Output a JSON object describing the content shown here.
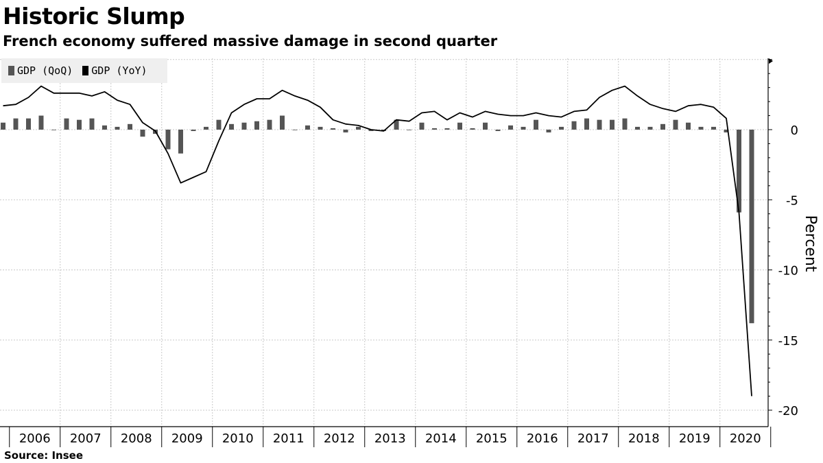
{
  "title": "Historic Slump",
  "subtitle": "French economy suffered massive damage in second quarter",
  "source": "Source: Insee",
  "colors": {
    "bar": "#555555",
    "line": "#000000",
    "grid": "#c8c8c8",
    "legend_bg": "#efefef"
  },
  "chart_data": {
    "type": "bar",
    "title": "Historic Slump",
    "subtitle": "French economy suffered massive damage in second quarter",
    "ylabel": "Percent",
    "xlabel": "",
    "ylim": [
      -21,
      5
    ],
    "yticks": [
      0,
      -5,
      -10,
      -15,
      -20
    ],
    "y_axis_side": "right",
    "grid": true,
    "legend_placement": "top-left",
    "year_labels": [
      "2006",
      "2007",
      "2008",
      "2009",
      "2010",
      "2011",
      "2012",
      "2013",
      "2014",
      "2015",
      "2016",
      "2017",
      "2018",
      "2019",
      "2020"
    ],
    "x": [
      "2005 Q3",
      "2005 Q4",
      "2006 Q1",
      "2006 Q2",
      "2006 Q3",
      "2006 Q4",
      "2007 Q1",
      "2007 Q2",
      "2007 Q3",
      "2007 Q4",
      "2008 Q1",
      "2008 Q2",
      "2008 Q3",
      "2008 Q4",
      "2009 Q1",
      "2009 Q2",
      "2009 Q3",
      "2009 Q4",
      "2010 Q1",
      "2010 Q2",
      "2010 Q3",
      "2010 Q4",
      "2011 Q1",
      "2011 Q2",
      "2011 Q3",
      "2011 Q4",
      "2012 Q1",
      "2012 Q2",
      "2012 Q3",
      "2012 Q4",
      "2013 Q1",
      "2013 Q2",
      "2013 Q3",
      "2013 Q4",
      "2014 Q1",
      "2014 Q2",
      "2014 Q3",
      "2014 Q4",
      "2015 Q1",
      "2015 Q2",
      "2015 Q3",
      "2015 Q4",
      "2016 Q1",
      "2016 Q2",
      "2016 Q3",
      "2016 Q4",
      "2017 Q1",
      "2017 Q2",
      "2017 Q3",
      "2017 Q4",
      "2018 Q1",
      "2018 Q2",
      "2018 Q3",
      "2018 Q4",
      "2019 Q1",
      "2019 Q2",
      "2019 Q3",
      "2019 Q4",
      "2020 Q1",
      "2020 Q2"
    ],
    "series": [
      {
        "name": "GDP (QoQ)",
        "type": "bar",
        "values": [
          0.5,
          0.8,
          0.8,
          1.0,
          0.0,
          0.8,
          0.7,
          0.8,
          0.3,
          0.2,
          0.4,
          -0.5,
          -0.3,
          -1.4,
          -1.7,
          -0.1,
          0.2,
          0.7,
          0.4,
          0.5,
          0.6,
          0.7,
          1.0,
          0.0,
          0.3,
          0.2,
          0.1,
          -0.2,
          0.2,
          -0.1,
          -0.1,
          0.7,
          0.0,
          0.5,
          0.1,
          0.1,
          0.5,
          0.1,
          0.5,
          -0.1,
          0.3,
          0.2,
          0.7,
          -0.2,
          0.2,
          0.6,
          0.8,
          0.7,
          0.7,
          0.8,
          0.2,
          0.2,
          0.4,
          0.7,
          0.5,
          0.2,
          0.2,
          -0.2,
          -5.9,
          -13.8
        ]
      },
      {
        "name": "GDP (YoY)",
        "type": "line",
        "values": [
          1.7,
          1.8,
          2.3,
          3.1,
          2.6,
          2.6,
          2.6,
          2.4,
          2.7,
          2.1,
          1.8,
          0.5,
          -0.1,
          -1.7,
          -3.8,
          -3.4,
          -3.0,
          -0.8,
          1.2,
          1.8,
          2.2,
          2.2,
          2.8,
          2.4,
          2.1,
          1.6,
          0.7,
          0.4,
          0.3,
          0.0,
          -0.1,
          0.7,
          0.6,
          1.2,
          1.3,
          0.7,
          1.2,
          0.9,
          1.3,
          1.1,
          1.0,
          1.0,
          1.2,
          1.0,
          0.9,
          1.3,
          1.4,
          2.3,
          2.8,
          3.1,
          2.4,
          1.8,
          1.5,
          1.3,
          1.7,
          1.8,
          1.6,
          0.8,
          -5.9,
          -19.0
        ]
      }
    ]
  }
}
